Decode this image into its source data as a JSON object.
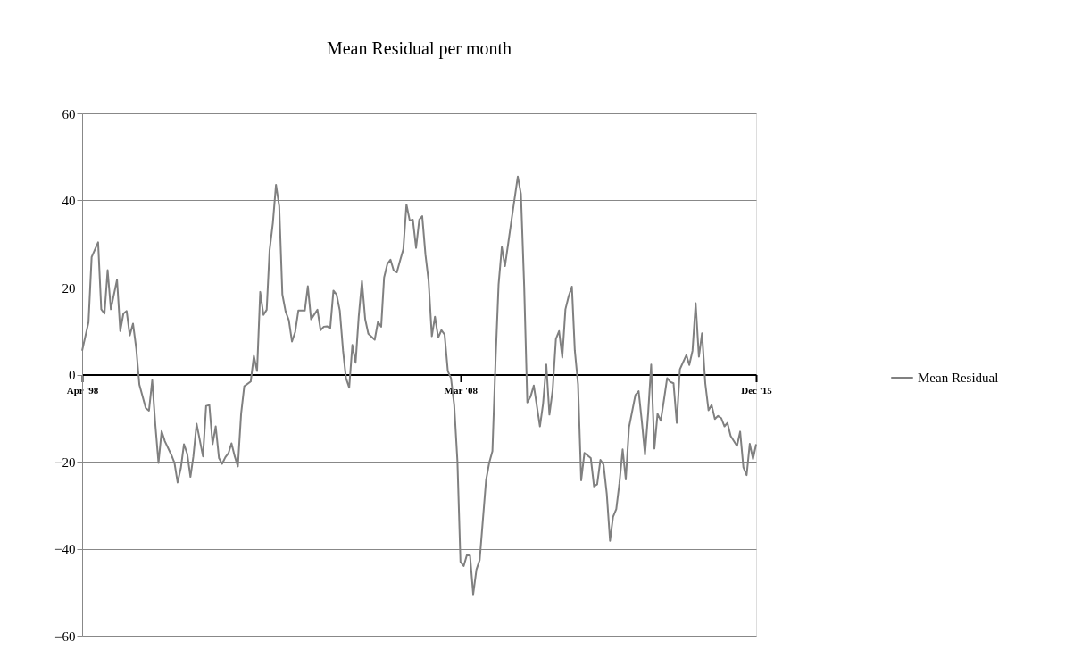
{
  "chart_data": {
    "type": "line",
    "title": "Mean Residual per month",
    "x": [
      "1998-04",
      "1998-06",
      "1998-07",
      "1998-09",
      "1998-10",
      "1998-11",
      "1998-12",
      "1999-01",
      "1999-03",
      "1999-04",
      "1999-05",
      "1999-06",
      "1999-07",
      "1999-08",
      "1999-09",
      "1999-10",
      "1999-12",
      "2000-01",
      "2000-02",
      "2000-03",
      "2000-04",
      "2000-05",
      "2000-06",
      "2000-08",
      "2000-09",
      "2000-10",
      "2000-11",
      "2000-12",
      "2001-01",
      "2001-02",
      "2001-03",
      "2001-04",
      "2001-06",
      "2001-07",
      "2001-08",
      "2001-09",
      "2001-10",
      "2001-11",
      "2001-12",
      "2002-01",
      "2002-02",
      "2002-03",
      "2002-04",
      "2002-05",
      "2002-06",
      "2002-07",
      "2002-09",
      "2002-10",
      "2002-11",
      "2002-12",
      "2003-01",
      "2003-02",
      "2003-03",
      "2003-04",
      "2003-05",
      "2003-06",
      "2003-07",
      "2003-08",
      "2003-09",
      "2003-10",
      "2003-11",
      "2003-12",
      "2004-02",
      "2004-03",
      "2004-04",
      "2004-06",
      "2004-07",
      "2004-08",
      "2004-09",
      "2004-10",
      "2004-11",
      "2004-12",
      "2005-01",
      "2005-02",
      "2005-03",
      "2005-04",
      "2005-05",
      "2005-06",
      "2005-07",
      "2005-08",
      "2005-09",
      "2005-10",
      "2005-12",
      "2006-01",
      "2006-02",
      "2006-03",
      "2006-04",
      "2006-05",
      "2006-06",
      "2006-07",
      "2006-08",
      "2006-09",
      "2006-10",
      "2006-11",
      "2006-12",
      "2007-01",
      "2007-02",
      "2007-03",
      "2007-04",
      "2007-05",
      "2007-06",
      "2007-07",
      "2007-08",
      "2007-09",
      "2007-10",
      "2007-11",
      "2007-12",
      "2008-01",
      "2008-02",
      "2008-03",
      "2008-04",
      "2008-05",
      "2008-06",
      "2008-07",
      "2008-08",
      "2008-09",
      "2008-10",
      "2008-11",
      "2008-12",
      "2009-01",
      "2009-02",
      "2009-03",
      "2009-04",
      "2009-05",
      "2009-07",
      "2009-09",
      "2009-10",
      "2009-11",
      "2009-12",
      "2010-01",
      "2010-02",
      "2010-04",
      "2010-05",
      "2010-06",
      "2010-07",
      "2010-08",
      "2010-09",
      "2010-10",
      "2010-11",
      "2010-12",
      "2011-01",
      "2011-02",
      "2011-03",
      "2011-04",
      "2011-05",
      "2011-06",
      "2011-08",
      "2011-09",
      "2011-10",
      "2011-11",
      "2011-12",
      "2012-01",
      "2012-02",
      "2012-03",
      "2012-04",
      "2012-05",
      "2012-06",
      "2012-07",
      "2012-08",
      "2012-10",
      "2012-11",
      "2012-12",
      "2013-01",
      "2013-02",
      "2013-03",
      "2013-04",
      "2013-05",
      "2013-06",
      "2013-07",
      "2013-08",
      "2013-09",
      "2013-10",
      "2013-11",
      "2013-12",
      "2014-02",
      "2014-03",
      "2014-04",
      "2014-05",
      "2014-06",
      "2014-07",
      "2014-08",
      "2014-09",
      "2014-10",
      "2014-11",
      "2014-12",
      "2015-01",
      "2015-02",
      "2015-03",
      "2015-04",
      "2015-06",
      "2015-07",
      "2015-08",
      "2015-09",
      "2015-10",
      "2015-11",
      "2015-12"
    ],
    "series": [
      {
        "name": "Mean Residual",
        "color": "#808080",
        "values": [
          5.5,
          12,
          27,
          30.4,
          15,
          14,
          24,
          15,
          21.8,
          10,
          14,
          14.6,
          9,
          11.7,
          6,
          -2.3,
          -7.7,
          -8.3,
          -1.3,
          -11.3,
          -20.3,
          -13,
          -15.3,
          -18.4,
          -20.3,
          -24.8,
          -21.5,
          -16,
          -18.2,
          -23.5,
          -18.8,
          -11.3,
          -18.8,
          -7.2,
          -7,
          -16,
          -11.9,
          -19.2,
          -20.5,
          -19,
          -18,
          -15.8,
          -18.8,
          -21.1,
          -9,
          -2.7,
          -1.6,
          4.3,
          0.8,
          19,
          13.7,
          14.9,
          28.6,
          34.8,
          43.6,
          38.7,
          18.4,
          14.5,
          12.5,
          7.6,
          9.8,
          14.7,
          14.7,
          20.3,
          12.7,
          14.9,
          10.2,
          11,
          11.1,
          10.6,
          19.3,
          18.4,
          14.7,
          5.5,
          -0.8,
          -3,
          6.8,
          2.7,
          13.3,
          21.5,
          12.7,
          9.4,
          8,
          12.1,
          11,
          22.3,
          25.4,
          26.4,
          23.9,
          23.5,
          26.2,
          28.8,
          39.1,
          35.4,
          35.6,
          29.1,
          35.6,
          36.4,
          27.5,
          21.5,
          8.8,
          13.3,
          8.5,
          10.2,
          9.2,
          0.8,
          -0.8,
          -7,
          -20,
          -43,
          -44,
          -41.5,
          -41.6,
          -50.5,
          -44.8,
          -42.6,
          -33.6,
          -24.3,
          -20.3,
          -17.6,
          3.9,
          20.7,
          29.3,
          24.9,
          35.2,
          45.5,
          41.5,
          20.3,
          -6.4,
          -5.1,
          -2.5,
          -11.9,
          -6.7,
          2.3,
          -9.2,
          -3.5,
          8.2,
          10,
          3.9,
          15,
          18,
          20.2,
          5.5,
          -2.3,
          -24.3,
          -18,
          -19.2,
          -25.7,
          -25.2,
          -19.6,
          -20.7,
          -27.4,
          -38.2,
          -32.7,
          -30.9,
          -25,
          -17.2,
          -24.1,
          -12.1,
          -4.7,
          -3.8,
          -10.6,
          -18.4,
          -8.6,
          2.3,
          -17,
          -9,
          -10.6,
          -5.9,
          -0.8,
          -1.7,
          -2,
          -11.1,
          1.2,
          4.5,
          2.2,
          5.5,
          16.4,
          4.1,
          9.5,
          -2,
          -8.2,
          -7,
          -10.2,
          -9.5,
          -10,
          -11.9,
          -11.1,
          -14.1,
          -16.4,
          -13.1,
          -21.3,
          -23.1,
          -15.9,
          -19.4,
          -16
        ]
      }
    ],
    "xlim": [
      "1998-04",
      "2015-12"
    ],
    "xticks": [
      {
        "value": "1998-04",
        "label": "Apr '98"
      },
      {
        "value": "2008-03",
        "label": "Mar '08"
      },
      {
        "value": "2015-12",
        "label": "Dec '15"
      }
    ],
    "ylim": [
      -60,
      60
    ],
    "yticks": [
      -60,
      -40,
      -20,
      0,
      20,
      40,
      60
    ],
    "grid": "y",
    "legend": "right",
    "marker": "none",
    "line_style": "solid"
  }
}
